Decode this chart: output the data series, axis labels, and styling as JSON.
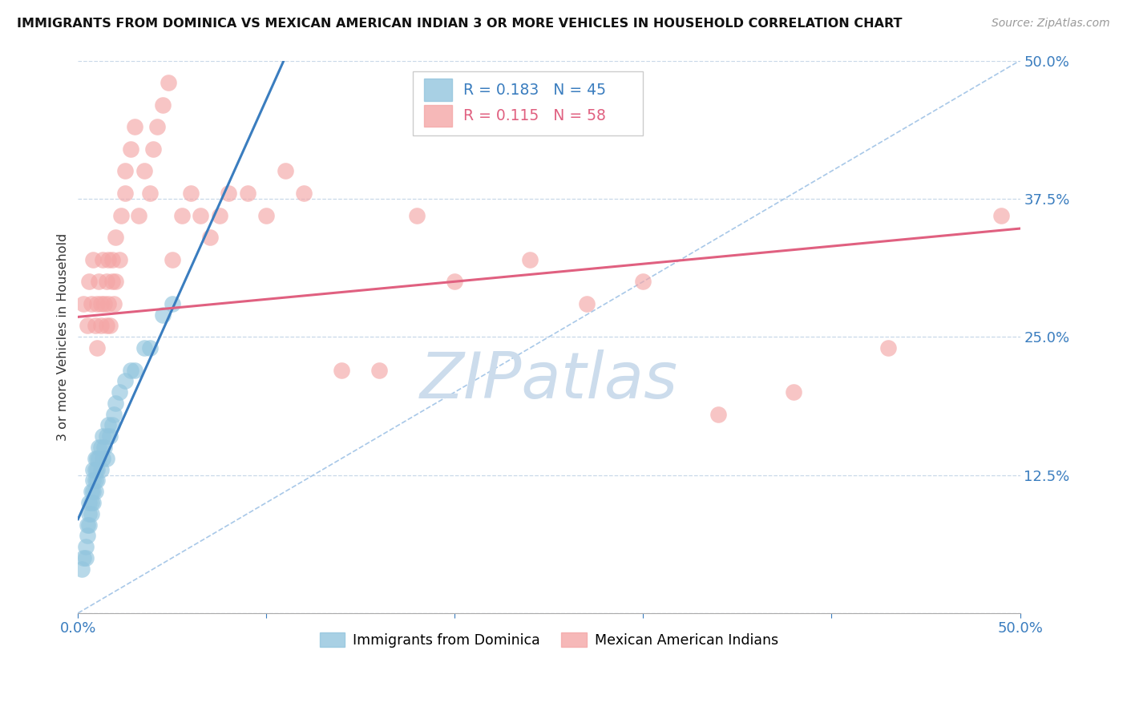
{
  "title": "IMMIGRANTS FROM DOMINICA VS MEXICAN AMERICAN INDIAN 3 OR MORE VEHICLES IN HOUSEHOLD CORRELATION CHART",
  "source": "Source: ZipAtlas.com",
  "ylabel": "3 or more Vehicles in Household",
  "x_min": 0.0,
  "x_max": 0.5,
  "y_min": 0.0,
  "y_max": 0.5,
  "y_ticks_right": [
    0.125,
    0.25,
    0.375,
    0.5
  ],
  "y_tick_labels_right": [
    "12.5%",
    "25.0%",
    "37.5%",
    "50.0%"
  ],
  "series1_label": "Immigrants from Dominica",
  "series1_R": "0.183",
  "series1_N": "45",
  "series1_color": "#92c5de",
  "series2_label": "Mexican American Indians",
  "series2_R": "0.115",
  "series2_N": "58",
  "series2_color": "#f4a6a6",
  "trendline1_color": "#3a7dbf",
  "trendline2_color": "#e06080",
  "diagonal_color": "#a8c8e8",
  "background_color": "#ffffff",
  "watermark": "ZIPatlas",
  "watermark_color": "#ccdcec",
  "series1_x": [
    0.002,
    0.003,
    0.004,
    0.004,
    0.005,
    0.005,
    0.006,
    0.006,
    0.006,
    0.007,
    0.007,
    0.007,
    0.008,
    0.008,
    0.008,
    0.008,
    0.009,
    0.009,
    0.009,
    0.009,
    0.01,
    0.01,
    0.01,
    0.011,
    0.011,
    0.012,
    0.012,
    0.013,
    0.013,
    0.014,
    0.015,
    0.015,
    0.016,
    0.017,
    0.018,
    0.019,
    0.02,
    0.022,
    0.025,
    0.028,
    0.03,
    0.035,
    0.038,
    0.045,
    0.05
  ],
  "series1_y": [
    0.04,
    0.05,
    0.06,
    0.05,
    0.08,
    0.07,
    0.09,
    0.08,
    0.1,
    0.1,
    0.09,
    0.11,
    0.1,
    0.12,
    0.11,
    0.13,
    0.11,
    0.12,
    0.13,
    0.14,
    0.13,
    0.14,
    0.12,
    0.14,
    0.15,
    0.15,
    0.13,
    0.16,
    0.14,
    0.15,
    0.16,
    0.14,
    0.17,
    0.16,
    0.17,
    0.18,
    0.19,
    0.2,
    0.21,
    0.22,
    0.22,
    0.24,
    0.24,
    0.27,
    0.28
  ],
  "series2_x": [
    0.003,
    0.005,
    0.006,
    0.007,
    0.008,
    0.009,
    0.01,
    0.01,
    0.011,
    0.012,
    0.012,
    0.013,
    0.014,
    0.015,
    0.015,
    0.016,
    0.016,
    0.017,
    0.018,
    0.018,
    0.019,
    0.02,
    0.02,
    0.022,
    0.023,
    0.025,
    0.025,
    0.028,
    0.03,
    0.032,
    0.035,
    0.038,
    0.04,
    0.042,
    0.045,
    0.048,
    0.05,
    0.055,
    0.06,
    0.065,
    0.07,
    0.075,
    0.08,
    0.09,
    0.1,
    0.11,
    0.12,
    0.14,
    0.16,
    0.18,
    0.2,
    0.24,
    0.27,
    0.3,
    0.34,
    0.38,
    0.43,
    0.49
  ],
  "series2_y": [
    0.28,
    0.26,
    0.3,
    0.28,
    0.32,
    0.26,
    0.28,
    0.24,
    0.3,
    0.26,
    0.28,
    0.32,
    0.28,
    0.3,
    0.26,
    0.32,
    0.28,
    0.26,
    0.3,
    0.32,
    0.28,
    0.34,
    0.3,
    0.32,
    0.36,
    0.38,
    0.4,
    0.42,
    0.44,
    0.36,
    0.4,
    0.38,
    0.42,
    0.44,
    0.46,
    0.48,
    0.32,
    0.36,
    0.38,
    0.36,
    0.34,
    0.36,
    0.38,
    0.38,
    0.36,
    0.4,
    0.38,
    0.22,
    0.22,
    0.36,
    0.3,
    0.32,
    0.28,
    0.3,
    0.18,
    0.2,
    0.24,
    0.36
  ]
}
